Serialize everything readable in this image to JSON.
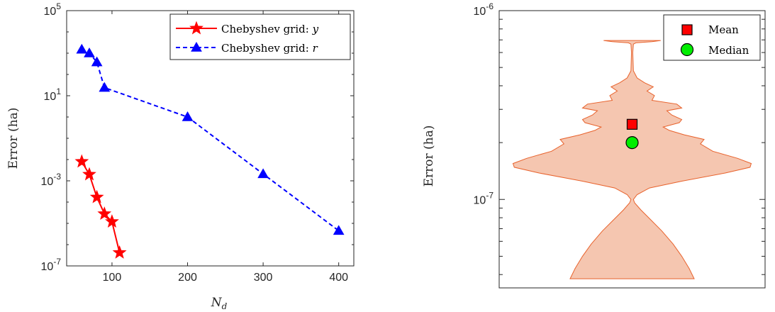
{
  "chart_data": [
    {
      "type": "line",
      "xlabel": "N",
      "xlabel_sub": "d",
      "ylabel": "Error (ha)",
      "xlim": [
        40,
        420
      ],
      "ylim": [
        1e-07,
        100000.0
      ],
      "yscale": "log",
      "xticks": [
        "100",
        "200",
        "300",
        "400"
      ],
      "yticks": [
        {
          "base": "10",
          "exp": "-7"
        },
        {
          "base": "10",
          "exp": "-3"
        },
        {
          "base": "10",
          "exp": "1"
        },
        {
          "base": "10",
          "exp": "5"
        }
      ],
      "legend_position": "top-right",
      "series": [
        {
          "name": "Chebyshev grid: ",
          "name_var": "y",
          "color": "#ff0000",
          "marker": "star",
          "style": "solid",
          "x": [
            60,
            70,
            80,
            90,
            100,
            110
          ],
          "y": [
            0.008,
            0.002,
            0.00017,
            2.8e-05,
            1.2e-05,
            4.2e-07
          ]
        },
        {
          "name": "Chebyshev grid: ",
          "name_var": "r",
          "color": "#0000ff",
          "marker": "triangle",
          "style": "dashed",
          "x": [
            60,
            70,
            80,
            90,
            200,
            300,
            400
          ],
          "y": [
            1500,
            1000,
            380,
            24,
            1.0,
            0.0021,
            4.5e-06
          ]
        }
      ]
    },
    {
      "type": "violin",
      "ylabel": "Error (ha)",
      "yscale": "log",
      "ylim": [
        3.4e-08,
        1e-06
      ],
      "yticks": [
        {
          "base": "10",
          "exp": "-7"
        },
        {
          "base": "10",
          "exp": "-6"
        }
      ],
      "fill_color": "#f5c6b0",
      "edge_color": "#e8622c",
      "mean": 2.5e-07,
      "median": 2e-07,
      "legend_position": "top-right",
      "legend": [
        {
          "label": "Mean",
          "marker": "square",
          "color": "#ff0000"
        },
        {
          "label": "Median",
          "marker": "circle",
          "color": "#00ee00"
        }
      ],
      "distribution": [
        [
          3.8e-08,
          0.5
        ],
        [
          4.3e-08,
          0.46
        ],
        [
          5e-08,
          0.4
        ],
        [
          5.8e-08,
          0.33
        ],
        [
          6.8e-08,
          0.24
        ],
        [
          7.8e-08,
          0.15
        ],
        [
          8.8e-08,
          0.07
        ],
        [
          9.6e-08,
          0.02
        ],
        [
          1e-07,
          0.01
        ],
        [
          1.06e-07,
          0.04
        ],
        [
          1.15e-07,
          0.14
        ],
        [
          1.25e-07,
          0.4
        ],
        [
          1.38e-07,
          0.75
        ],
        [
          1.48e-07,
          0.95
        ],
        [
          1.55e-07,
          0.96
        ],
        [
          1.65e-07,
          0.85
        ],
        [
          1.8e-07,
          0.65
        ],
        [
          1.97e-07,
          0.55
        ],
        [
          2.08e-07,
          0.58
        ],
        [
          2.2e-07,
          0.42
        ],
        [
          2.32e-07,
          0.3
        ],
        [
          2.42e-07,
          0.25
        ],
        [
          2.55e-07,
          0.38
        ],
        [
          2.65e-07,
          0.4
        ],
        [
          2.8e-07,
          0.32
        ],
        [
          2.95e-07,
          0.28
        ],
        [
          3.05e-07,
          0.4
        ],
        [
          3.2e-07,
          0.36
        ],
        [
          3.35e-07,
          0.16
        ],
        [
          3.55e-07,
          0.18
        ],
        [
          3.75e-07,
          0.12
        ],
        [
          3.95e-07,
          0.17
        ],
        [
          4.15e-07,
          0.1
        ],
        [
          4.4e-07,
          0.04
        ],
        [
          4.8e-07,
          0.01
        ],
        [
          6e-07,
          0.005
        ],
        [
          6.65e-07,
          0.01
        ],
        [
          6.75e-07,
          0.03
        ],
        [
          6.85e-07,
          0.16
        ],
        [
          6.95e-07,
          0.23
        ]
      ]
    }
  ]
}
